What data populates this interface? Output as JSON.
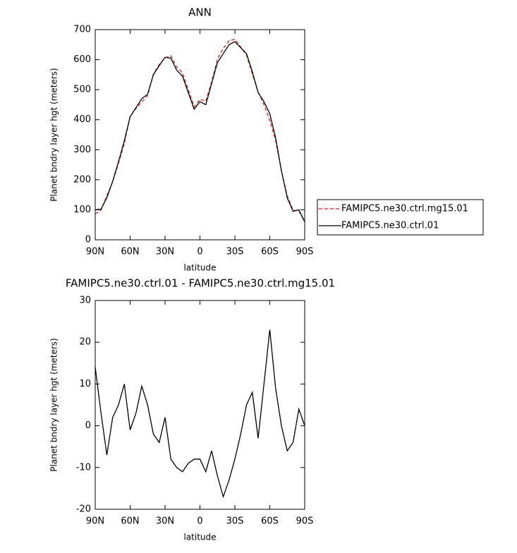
{
  "chart_data": [
    {
      "type": "line",
      "title": "ANN",
      "ylabel": "Planet bndry layer hgt (meters)",
      "xlabel": "latitude",
      "x": [
        90,
        85,
        80,
        75,
        70,
        65,
        60,
        55,
        50,
        45,
        40,
        35,
        30,
        25,
        20,
        15,
        10,
        5,
        0,
        -5,
        -10,
        -15,
        -20,
        -25,
        -30,
        -35,
        -40,
        -45,
        -50,
        -55,
        -60,
        -65,
        -70,
        -75,
        -80,
        -85,
        -90
      ],
      "xlim": [
        90,
        -90
      ],
      "xticks": [
        {
          "value": 90,
          "label": "90N"
        },
        {
          "value": 60,
          "label": "60N"
        },
        {
          "value": 30,
          "label": "30N"
        },
        0,
        {
          "value": -30,
          "label": "30S"
        },
        {
          "value": -60,
          "label": "60S"
        },
        {
          "value": -90,
          "label": "90S"
        }
      ],
      "ylim": [
        0,
        700
      ],
      "yticks": [
        0,
        100,
        200,
        300,
        400,
        500,
        600,
        700
      ],
      "series": [
        {
          "name": "FAMIPC5.ne30.ctrl.mg15.01",
          "color": "#e0201b",
          "dash": true,
          "values": [
            86,
            99,
            147,
            193,
            255,
            320,
            411,
            437,
            460,
            480,
            552,
            584,
            606,
            613,
            575,
            556,
            499,
            443,
            468,
            461,
            526,
            602,
            637,
            663,
            668,
            642,
            615,
            552,
            493,
            450,
            397,
            331,
            230,
            146,
            99,
            96,
            60
          ]
        },
        {
          "name": "FAMIPC5.ne30.ctrl.01",
          "color": "#000000",
          "dash": false,
          "values": [
            100,
            102,
            140,
            195,
            260,
            330,
            410,
            440,
            470,
            485,
            550,
            580,
            608,
            605,
            565,
            545,
            490,
            435,
            460,
            450,
            520,
            590,
            620,
            650,
            660,
            640,
            620,
            560,
            490,
            460,
            420,
            340,
            230,
            140,
            95,
            100,
            60
          ]
        }
      ]
    },
    {
      "type": "line",
      "title": "FAMIPC5.ne30.ctrl.01 - FAMIPC5.ne30.ctrl.mg15.01",
      "ylabel": "Planet bndry layer hgt (meters)",
      "xlabel": "latitude",
      "x": [
        90,
        85,
        80,
        75,
        70,
        65,
        60,
        55,
        50,
        45,
        40,
        35,
        30,
        25,
        20,
        15,
        10,
        5,
        0,
        -5,
        -10,
        -15,
        -20,
        -25,
        -30,
        -35,
        -40,
        -45,
        -50,
        -55,
        -60,
        -65,
        -70,
        -75,
        -80,
        -85,
        -90
      ],
      "xlim": [
        90,
        -90
      ],
      "xticks": [
        {
          "value": 90,
          "label": "90N"
        },
        {
          "value": 60,
          "label": "60N"
        },
        {
          "value": 30,
          "label": "30N"
        },
        0,
        {
          "value": -30,
          "label": "30S"
        },
        {
          "value": -60,
          "label": "60S"
        },
        {
          "value": -90,
          "label": "90S"
        }
      ],
      "ylim": [
        -20,
        30
      ],
      "yticks": [
        -20,
        -10,
        0,
        10,
        20,
        30
      ],
      "series": [
        {
          "color": "#000000",
          "values": [
            14,
            3,
            -7,
            2,
            5,
            10,
            -1,
            3,
            9.5,
            5,
            -2,
            -4,
            2,
            -8,
            -10,
            -11,
            -9,
            -8,
            -8,
            -11,
            -6,
            -12,
            -17,
            -13,
            -8,
            -2,
            5,
            8,
            -3,
            10,
            23,
            9,
            0,
            -6,
            -4,
            4,
            0
          ]
        }
      ]
    }
  ]
}
